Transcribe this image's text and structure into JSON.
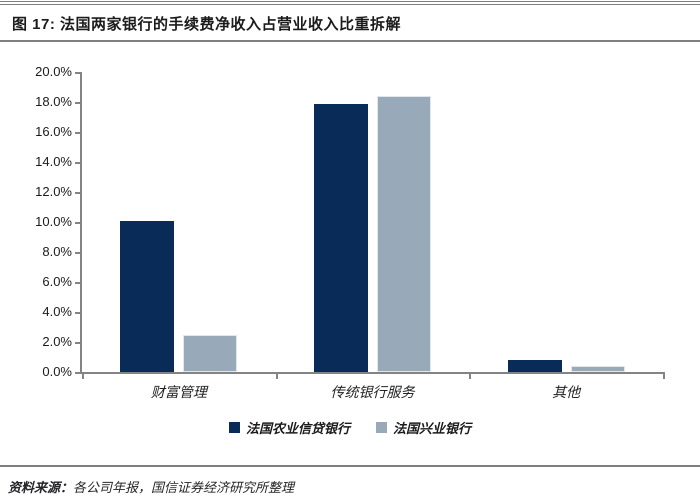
{
  "header": {
    "title": "图 17: 法国两家银行的手续费净收入占营业收入比重拆解"
  },
  "chart_data": {
    "type": "bar",
    "title": "法国两家银行的手续费净收入占营业收入比重拆解",
    "figure_label": "图 17",
    "categories": [
      "财富管理",
      "传统银行服务",
      "其他"
    ],
    "series": [
      {
        "name": "法国农业信贷银行",
        "color": "#092b58",
        "values": [
          10.1,
          17.9,
          0.8
        ]
      },
      {
        "name": "法国兴业银行",
        "color": "#98a9ba",
        "values": [
          2.5,
          18.4,
          0.4
        ]
      }
    ],
    "xlabel": "",
    "ylabel": "",
    "ylim": [
      0,
      20
    ],
    "ytick_step": 2,
    "ytick_labels": [
      "0.0%",
      "2.0%",
      "4.0%",
      "6.0%",
      "8.0%",
      "10.0%",
      "12.0%",
      "14.0%",
      "16.0%",
      "18.0%",
      "20.0%"
    ],
    "grid": false,
    "legend_position": "bottom",
    "axis_color": "#848484"
  },
  "footer": {
    "source_label": "资料来源：",
    "source_text": "各公司年报，国信证券经济研究所整理"
  }
}
